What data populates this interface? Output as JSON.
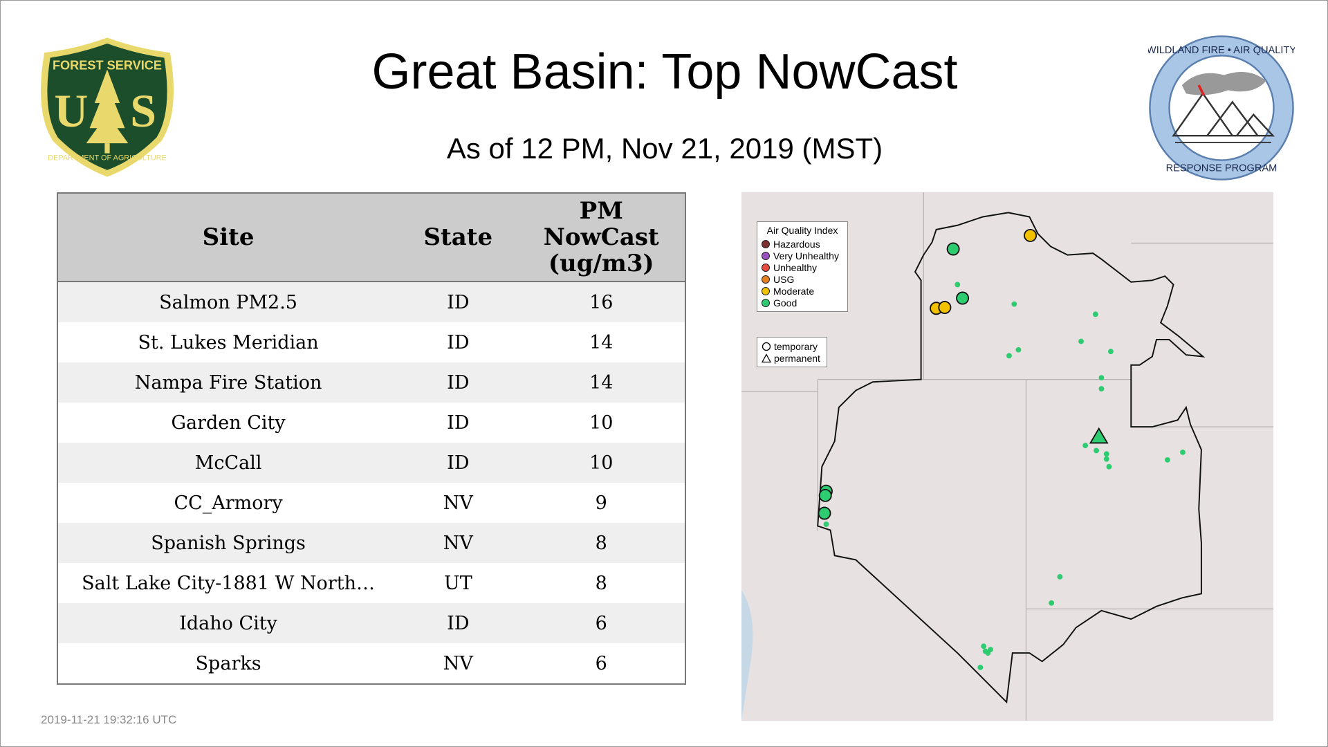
{
  "header": {
    "title": "Great Basin: Top NowCast",
    "subtitle": "As of 12 PM, Nov 21, 2019 (MST)"
  },
  "logos": {
    "left": "FOREST SERVICE U S DEPARTMENT OF AGRICULTURE",
    "right": "WILDLAND FIRE AIR QUALITY RESPONSE PROGRAM"
  },
  "table": {
    "headers": [
      "Site",
      "State",
      "PM NowCast (ug/m3)"
    ],
    "rows": [
      {
        "site": "Salmon PM2.5",
        "state": "ID",
        "value": "16"
      },
      {
        "site": "St. Lukes Meridian",
        "state": "ID",
        "value": "14"
      },
      {
        "site": "Nampa Fire Station",
        "state": "ID",
        "value": "14"
      },
      {
        "site": "Garden City",
        "state": "ID",
        "value": "10"
      },
      {
        "site": "McCall",
        "state": "ID",
        "value": "10"
      },
      {
        "site": "CC_Armory",
        "state": "NV",
        "value": "9"
      },
      {
        "site": "Spanish Springs",
        "state": "NV",
        "value": "8"
      },
      {
        "site": "Salt Lake City-1881 W North…",
        "state": "UT",
        "value": "8"
      },
      {
        "site": "Idaho City",
        "state": "ID",
        "value": "6"
      },
      {
        "site": "Sparks",
        "state": "NV",
        "value": "6"
      }
    ]
  },
  "map": {
    "legend_title": "Air Quality Index",
    "categories": [
      {
        "label": "Hazardous",
        "color": "#7e2e2e"
      },
      {
        "label": "Very Unhealthy",
        "color": "#9b4fc0"
      },
      {
        "label": "Unhealthy",
        "color": "#e84a3c"
      },
      {
        "label": "USG",
        "color": "#e8801e"
      },
      {
        "label": "Moderate",
        "color": "#f2c200"
      },
      {
        "label": "Good",
        "color": "#2ecc71"
      }
    ],
    "shapes": [
      {
        "label": "temporary",
        "icon": "circle-icon"
      },
      {
        "label": "permanent",
        "icon": "triangle-icon"
      }
    ]
  },
  "timestamp": "2019-11-21 19:32:16 UTC"
}
